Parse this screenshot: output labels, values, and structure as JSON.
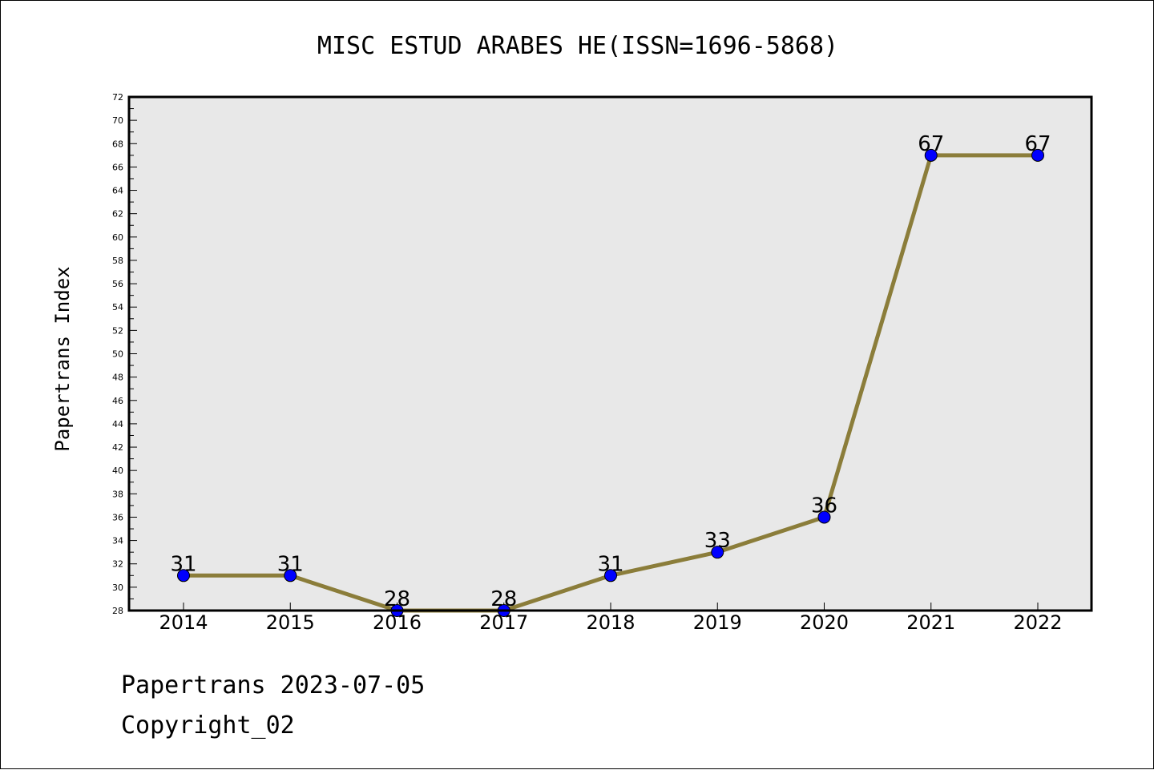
{
  "chart_data": {
    "type": "line",
    "title": "MISC ESTUD ARABES HE(ISSN=1696-5868)",
    "ylabel": "Papertrans Index",
    "xlabel": "",
    "categories": [
      "2014",
      "2015",
      "2016",
      "2017",
      "2018",
      "2019",
      "2020",
      "2021",
      "2022"
    ],
    "values": [
      31,
      31,
      28,
      28,
      31,
      33,
      36,
      67,
      67
    ],
    "ylim": [
      28,
      72
    ],
    "yticks": [
      "28",
      "30",
      "32",
      "34",
      "36",
      "38",
      "40",
      "42",
      "44",
      "46",
      "48",
      "50",
      "52",
      "54",
      "56",
      "58",
      "60",
      "62",
      "64",
      "66",
      "68",
      "70",
      "72"
    ],
    "grid": false,
    "line_color": "#8B7D3A",
    "marker_color": "#0000FF",
    "plot_background": "#E8E8E8"
  },
  "footer": {
    "line1": "Papertrans 2023-07-05",
    "line2": "Copyright_02"
  }
}
